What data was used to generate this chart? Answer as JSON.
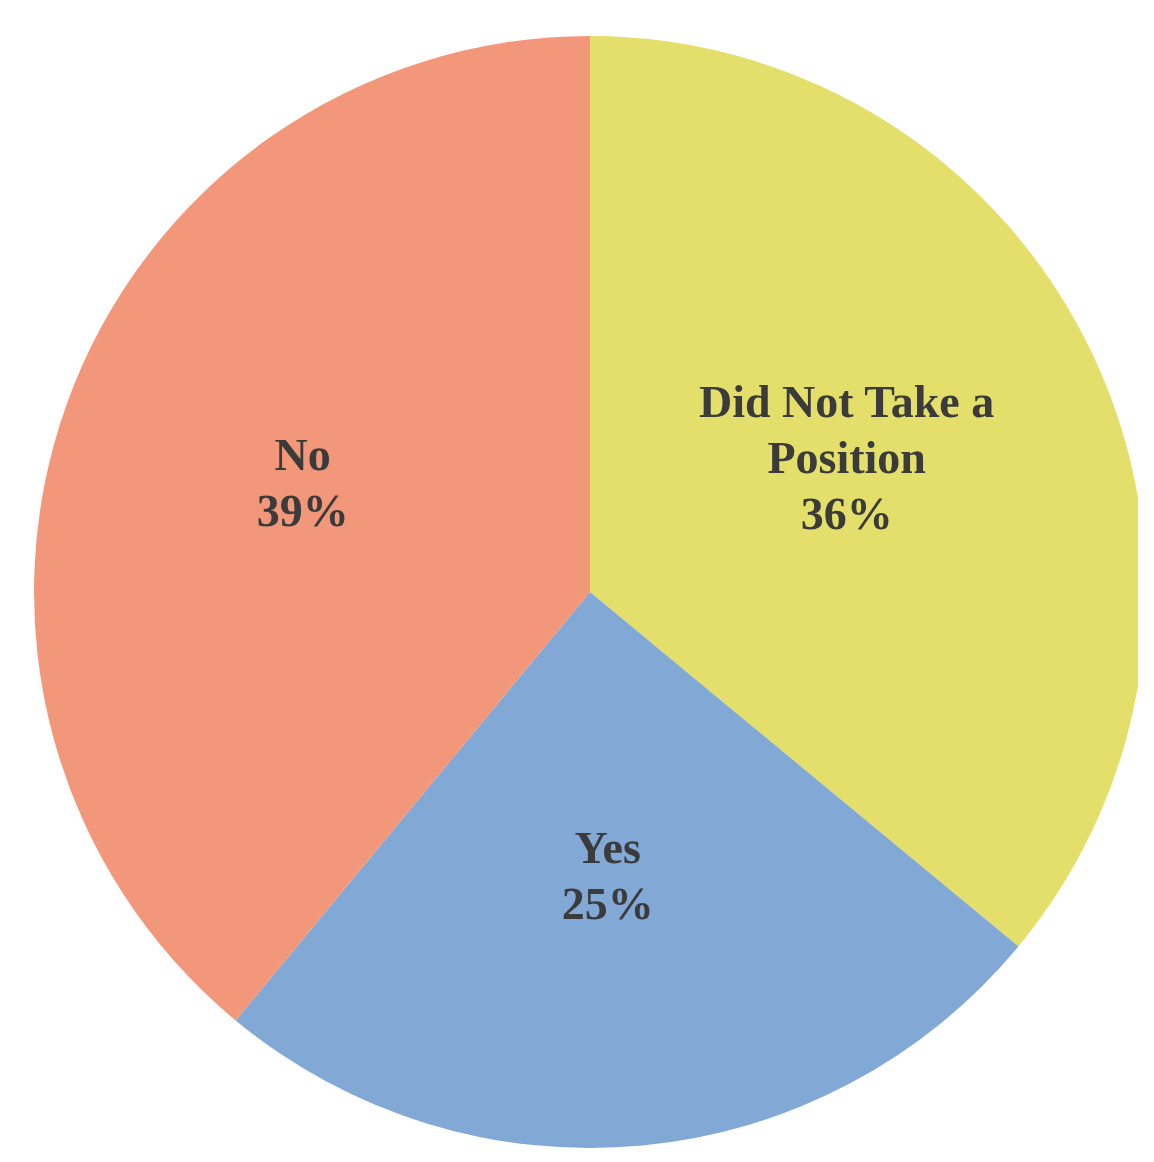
{
  "chart_data": {
    "type": "pie",
    "categories": [
      "Did Not Take a Position",
      "Yes",
      "No"
    ],
    "values": [
      36,
      25,
      39
    ],
    "value_labels": [
      "36%",
      "25%",
      "39%"
    ],
    "colors": [
      "#e4df6a",
      "#82a9d6",
      "#f3977b"
    ]
  }
}
